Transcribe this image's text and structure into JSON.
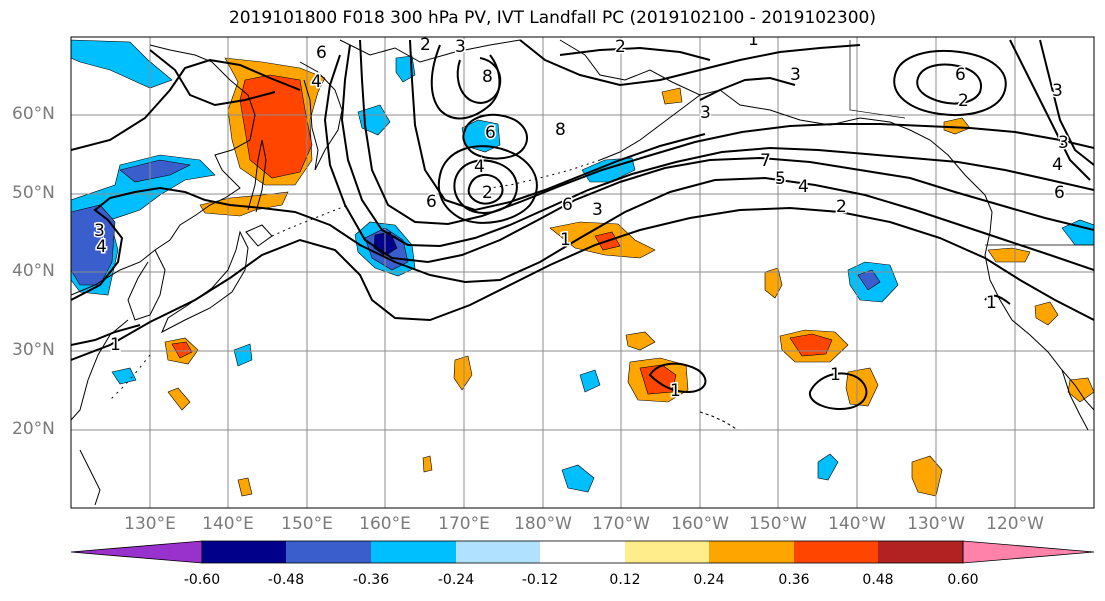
{
  "title": "2019101800 F018 300 hPa PV, IVT Landfall PC (2019102100 - 2019102300)",
  "latitude_labels": [
    "60°N",
    "50°N",
    "40°N",
    "30°N",
    "20°N"
  ],
  "longitude_labels": [
    "130°E",
    "140°E",
    "150°E",
    "160°E",
    "170°E",
    "180°W",
    "170°W",
    "160°W",
    "150°W",
    "140°W",
    "130°W",
    "120°W"
  ],
  "colorbar": {
    "colors": [
      "#9932cc",
      "#00008b",
      "#3a5fcd",
      "#00bfff",
      "#b0e2ff",
      "#ffffff",
      "#ffec8b",
      "#ffa500",
      "#ff4500",
      "#b22222",
      "#ff82ab"
    ],
    "tick_labels": [
      "-0.60",
      "-0.48",
      "-0.36",
      "-0.24",
      "-0.12",
      "0.12",
      "0.24",
      "0.36",
      "0.48",
      "0.60"
    ],
    "extend": "both"
  },
  "pv_contour_labels": [
    "6",
    "2",
    "1",
    "2",
    "3",
    "8",
    "6",
    "8",
    "4",
    "2",
    "6",
    "6",
    "3",
    "1",
    "7",
    "5",
    "4",
    "2",
    "3",
    "3",
    "6",
    "2",
    "3",
    "4",
    "6",
    "3",
    "4",
    "3",
    "4",
    "1",
    "1",
    "1",
    "1"
  ],
  "colors": {
    "land_outline": "#000000",
    "grid": "#8c8c8c",
    "axis_label": "#7a7a7a"
  }
}
